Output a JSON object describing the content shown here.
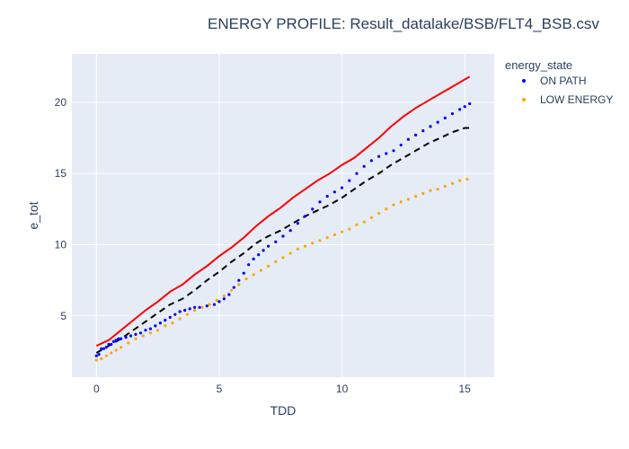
{
  "chart_data": {
    "type": "scatter",
    "title": "ENERGY PROFILE: Result_datalake/BSB/FLT4_BSB.csv",
    "xlabel": "TDD",
    "ylabel": "e_tot",
    "xlim": [
      -1.0,
      16.2
    ],
    "ylim": [
      0.7,
      23.4
    ],
    "x_ticks": [
      0,
      5,
      10,
      15
    ],
    "y_ticks": [
      5,
      10,
      15,
      20
    ],
    "x_tick_labels": [
      "0",
      "5",
      "10",
      "15"
    ],
    "y_tick_labels": [
      "5",
      "10",
      "15",
      "20"
    ],
    "grid": true,
    "plot_background": "#e5ecf6",
    "legend": {
      "title": "energy_state",
      "placement": "right",
      "entries": [
        {
          "label": "ON PATH",
          "color": "#0000ff"
        },
        {
          "label": "LOW ENERGY",
          "color": "#ffa500"
        }
      ]
    },
    "series": [
      {
        "name": "ON PATH",
        "kind": "markers",
        "color": "#0000ff",
        "points": [
          [
            0.0,
            2.2
          ],
          [
            0.1,
            2.3
          ],
          [
            0.2,
            2.7
          ],
          [
            0.3,
            2.7
          ],
          [
            0.4,
            2.8
          ],
          [
            0.5,
            3.0
          ],
          [
            0.6,
            3.0
          ],
          [
            0.7,
            3.2
          ],
          [
            0.8,
            3.3
          ],
          [
            0.9,
            3.4
          ],
          [
            1.0,
            3.4
          ],
          [
            1.2,
            3.5
          ],
          [
            1.4,
            3.6
          ],
          [
            1.6,
            3.7
          ],
          [
            1.8,
            3.8
          ],
          [
            2.0,
            4.0
          ],
          [
            2.2,
            4.1
          ],
          [
            2.4,
            4.3
          ],
          [
            2.6,
            4.5
          ],
          [
            2.8,
            4.7
          ],
          [
            3.0,
            4.9
          ],
          [
            3.2,
            5.1
          ],
          [
            3.4,
            5.3
          ],
          [
            3.6,
            5.4
          ],
          [
            3.8,
            5.5
          ],
          [
            4.0,
            5.6
          ],
          [
            4.2,
            5.6
          ],
          [
            4.5,
            5.7
          ],
          [
            4.8,
            5.8
          ],
          [
            5.0,
            6.0
          ],
          [
            5.2,
            6.2
          ],
          [
            5.4,
            6.5
          ],
          [
            5.6,
            7.0
          ],
          [
            5.8,
            7.5
          ],
          [
            6.0,
            8.0
          ],
          [
            6.2,
            8.6
          ],
          [
            6.4,
            9.0
          ],
          [
            6.6,
            9.3
          ],
          [
            6.8,
            9.6
          ],
          [
            7.0,
            9.9
          ],
          [
            7.3,
            10.2
          ],
          [
            7.6,
            10.6
          ],
          [
            7.9,
            11.0
          ],
          [
            8.2,
            11.5
          ],
          [
            8.5,
            12.0
          ],
          [
            8.8,
            12.5
          ],
          [
            9.1,
            13.0
          ],
          [
            9.4,
            13.4
          ],
          [
            9.7,
            13.7
          ],
          [
            10.0,
            14.0
          ],
          [
            10.3,
            14.5
          ],
          [
            10.6,
            15.0
          ],
          [
            10.9,
            15.5
          ],
          [
            11.2,
            15.9
          ],
          [
            11.5,
            16.2
          ],
          [
            11.8,
            16.4
          ],
          [
            12.1,
            16.6
          ],
          [
            12.4,
            17.0
          ],
          [
            12.7,
            17.4
          ],
          [
            13.0,
            17.7
          ],
          [
            13.3,
            18.0
          ],
          [
            13.6,
            18.3
          ],
          [
            13.9,
            18.6
          ],
          [
            14.2,
            18.9
          ],
          [
            14.5,
            19.2
          ],
          [
            14.8,
            19.5
          ],
          [
            15.0,
            19.7
          ],
          [
            15.2,
            19.9
          ]
        ]
      },
      {
        "name": "LOW ENERGY",
        "kind": "markers",
        "color": "#ffa500",
        "points": [
          [
            0.0,
            1.9
          ],
          [
            0.2,
            2.0
          ],
          [
            0.4,
            2.2
          ],
          [
            0.6,
            2.4
          ],
          [
            0.8,
            2.6
          ],
          [
            1.0,
            2.8
          ],
          [
            1.3,
            3.1
          ],
          [
            1.6,
            3.4
          ],
          [
            1.9,
            3.6
          ],
          [
            2.2,
            3.8
          ],
          [
            2.5,
            4.0
          ],
          [
            2.8,
            4.3
          ],
          [
            3.1,
            4.5
          ],
          [
            3.4,
            4.8
          ],
          [
            3.7,
            5.1
          ],
          [
            4.0,
            5.4
          ],
          [
            4.3,
            5.6
          ],
          [
            4.6,
            5.8
          ],
          [
            4.9,
            6.1
          ],
          [
            5.2,
            6.4
          ],
          [
            5.5,
            6.8
          ],
          [
            5.8,
            7.2
          ],
          [
            6.1,
            7.6
          ],
          [
            6.4,
            7.9
          ],
          [
            6.7,
            8.2
          ],
          [
            7.0,
            8.5
          ],
          [
            7.3,
            8.8
          ],
          [
            7.6,
            9.1
          ],
          [
            7.9,
            9.4
          ],
          [
            8.2,
            9.7
          ],
          [
            8.5,
            9.9
          ],
          [
            8.8,
            10.1
          ],
          [
            9.1,
            10.3
          ],
          [
            9.4,
            10.5
          ],
          [
            9.7,
            10.7
          ],
          [
            10.0,
            10.9
          ],
          [
            10.3,
            11.1
          ],
          [
            10.6,
            11.4
          ],
          [
            10.9,
            11.6
          ],
          [
            11.2,
            11.9
          ],
          [
            11.5,
            12.2
          ],
          [
            11.8,
            12.5
          ],
          [
            12.1,
            12.8
          ],
          [
            12.4,
            13.0
          ],
          [
            12.7,
            13.2
          ],
          [
            13.0,
            13.4
          ],
          [
            13.3,
            13.6
          ],
          [
            13.6,
            13.8
          ],
          [
            13.9,
            13.9
          ],
          [
            14.2,
            14.1
          ],
          [
            14.5,
            14.3
          ],
          [
            14.8,
            14.5
          ],
          [
            15.1,
            14.6
          ]
        ]
      },
      {
        "kind": "line",
        "dash": "solid",
        "color": "#ff0000",
        "points": [
          [
            0.0,
            2.9
          ],
          [
            0.5,
            3.3
          ],
          [
            1.0,
            4.0
          ],
          [
            1.5,
            4.7
          ],
          [
            2.0,
            5.4
          ],
          [
            2.5,
            6.0
          ],
          [
            3.0,
            6.7
          ],
          [
            3.5,
            7.2
          ],
          [
            4.0,
            7.9
          ],
          [
            4.5,
            8.5
          ],
          [
            5.0,
            9.2
          ],
          [
            5.5,
            9.8
          ],
          [
            6.0,
            10.5
          ],
          [
            6.5,
            11.3
          ],
          [
            7.0,
            12.0
          ],
          [
            7.5,
            12.6
          ],
          [
            8.0,
            13.3
          ],
          [
            8.5,
            13.9
          ],
          [
            9.0,
            14.5
          ],
          [
            9.5,
            15.0
          ],
          [
            10.0,
            15.6
          ],
          [
            10.5,
            16.1
          ],
          [
            11.0,
            16.8
          ],
          [
            11.5,
            17.5
          ],
          [
            12.0,
            18.3
          ],
          [
            12.5,
            19.0
          ],
          [
            13.0,
            19.6
          ],
          [
            13.5,
            20.1
          ],
          [
            14.0,
            20.6
          ],
          [
            14.5,
            21.1
          ],
          [
            15.0,
            21.6
          ],
          [
            15.2,
            21.8
          ]
        ]
      },
      {
        "kind": "line",
        "dash": "dash",
        "color": "#000000",
        "points": [
          [
            0.0,
            2.4
          ],
          [
            0.5,
            2.9
          ],
          [
            1.0,
            3.4
          ],
          [
            1.5,
            4.0
          ],
          [
            2.0,
            4.6
          ],
          [
            2.5,
            5.2
          ],
          [
            3.0,
            5.8
          ],
          [
            3.5,
            6.2
          ],
          [
            4.0,
            6.8
          ],
          [
            4.5,
            7.5
          ],
          [
            5.0,
            8.1
          ],
          [
            5.5,
            8.8
          ],
          [
            6.0,
            9.4
          ],
          [
            6.5,
            10.1
          ],
          [
            7.0,
            10.6
          ],
          [
            7.5,
            11.0
          ],
          [
            8.0,
            11.5
          ],
          [
            8.5,
            12.0
          ],
          [
            9.0,
            12.4
          ],
          [
            9.5,
            12.8
          ],
          [
            10.0,
            13.3
          ],
          [
            10.5,
            13.9
          ],
          [
            11.0,
            14.5
          ],
          [
            11.5,
            15.0
          ],
          [
            12.0,
            15.6
          ],
          [
            12.5,
            16.1
          ],
          [
            13.0,
            16.6
          ],
          [
            13.5,
            17.1
          ],
          [
            14.0,
            17.5
          ],
          [
            14.5,
            17.9
          ],
          [
            15.0,
            18.2
          ],
          [
            15.2,
            18.2
          ]
        ]
      }
    ]
  }
}
